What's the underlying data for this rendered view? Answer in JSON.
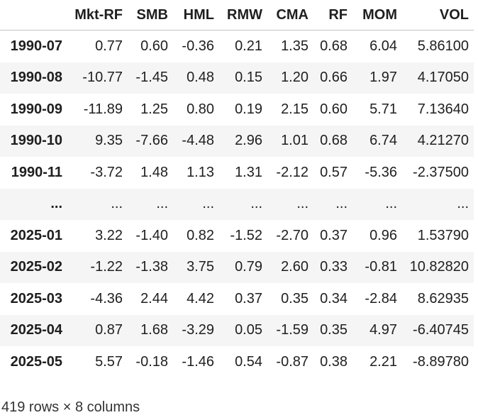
{
  "table": {
    "index_header": "",
    "columns": [
      "Mkt-RF",
      "SMB",
      "HML",
      "RMW",
      "CMA",
      "RF",
      "MOM",
      "VOL"
    ],
    "rows": [
      {
        "index": "1990-07",
        "values": [
          "0.77",
          "0.60",
          "-0.36",
          "0.21",
          "1.35",
          "0.68",
          "6.04",
          "5.86100"
        ]
      },
      {
        "index": "1990-08",
        "values": [
          "-10.77",
          "-1.45",
          "0.48",
          "0.15",
          "1.20",
          "0.66",
          "1.97",
          "4.17050"
        ]
      },
      {
        "index": "1990-09",
        "values": [
          "-11.89",
          "1.25",
          "0.80",
          "0.19",
          "2.15",
          "0.60",
          "5.71",
          "7.13640"
        ]
      },
      {
        "index": "1990-10",
        "values": [
          "9.35",
          "-7.66",
          "-4.48",
          "2.96",
          "1.01",
          "0.68",
          "6.74",
          "4.21270"
        ]
      },
      {
        "index": "1990-11",
        "values": [
          "-3.72",
          "1.48",
          "1.13",
          "1.31",
          "-2.12",
          "0.57",
          "-5.36",
          "-2.37500"
        ]
      },
      {
        "index": "...",
        "values": [
          "...",
          "...",
          "...",
          "...",
          "...",
          "...",
          "...",
          "..."
        ]
      },
      {
        "index": "2025-01",
        "values": [
          "3.22",
          "-1.40",
          "0.82",
          "-1.52",
          "-2.70",
          "0.37",
          "0.96",
          "1.53790"
        ]
      },
      {
        "index": "2025-02",
        "values": [
          "-1.22",
          "-1.38",
          "3.75",
          "0.79",
          "2.60",
          "0.33",
          "-0.81",
          "10.82820"
        ]
      },
      {
        "index": "2025-03",
        "values": [
          "-4.36",
          "2.44",
          "4.42",
          "0.37",
          "0.35",
          "0.34",
          "-2.84",
          "8.62935"
        ]
      },
      {
        "index": "2025-04",
        "values": [
          "0.87",
          "1.68",
          "-3.29",
          "0.05",
          "-1.59",
          "0.35",
          "4.97",
          "-6.40745"
        ]
      },
      {
        "index": "2025-05",
        "values": [
          "5.57",
          "-0.18",
          "-1.46",
          "0.54",
          "-0.87",
          "0.38",
          "2.21",
          "-8.89780"
        ]
      }
    ],
    "footer": "419 rows × 8 columns"
  },
  "colors": {
    "text": "#1f1f1f",
    "stripe_background": "#f5f5f5",
    "header_border": "#c2c2c2",
    "page_background": "#ffffff"
  }
}
